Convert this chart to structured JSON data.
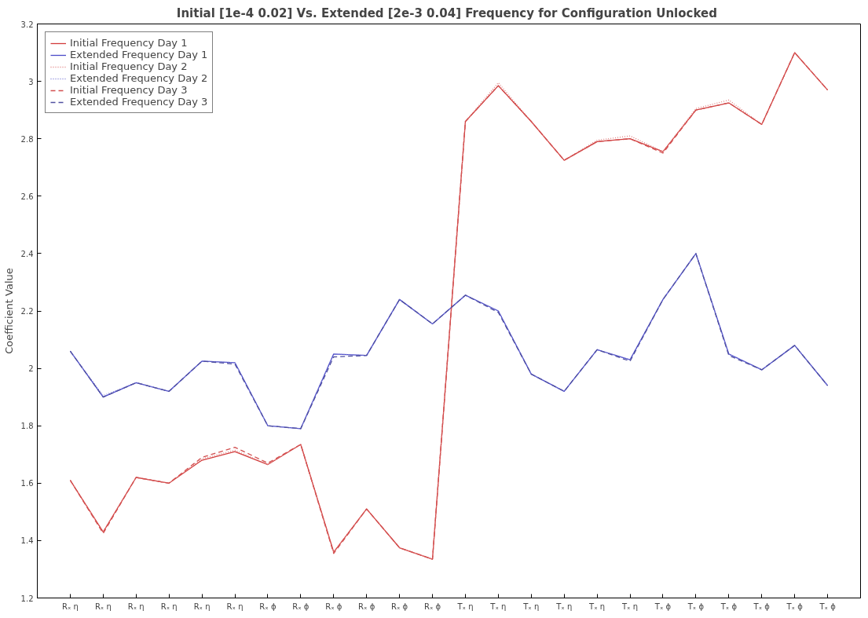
{
  "chart_data": {
    "type": "line",
    "title": "Initial [1e-4 0.02]  Vs. Extended [2e-3 0.04] Frequency for Configuration Unlocked",
    "ylabel": "Coefficient Value",
    "categories": [
      "Rₓ η",
      "Rₓ η",
      "Rₓ η",
      "Rₓ η",
      "Rₓ η",
      "Rₓ η",
      "Rₓ ϕ",
      "Rₓ ϕ",
      "Rₓ ϕ",
      "Rₓ ϕ",
      "Rₓ ϕ",
      "Rₓ ϕ",
      "Tₓ η",
      "Tₓ η",
      "Tₓ η",
      "Tₓ η",
      "Tₓ η",
      "Tₓ η",
      "Tₓ ϕ",
      "Tₓ ϕ",
      "Tₓ ϕ",
      "Tₓ ϕ",
      "Tₓ ϕ",
      "Tₓ ϕ"
    ],
    "series": [
      {
        "name": "Initial Frequency Day 1",
        "color": "#d23c3c",
        "line_style": "solid",
        "values": [
          1.61,
          1.43,
          1.62,
          1.6,
          1.68,
          1.71,
          1.665,
          1.735,
          1.36,
          1.51,
          1.375,
          1.335,
          2.86,
          2.985,
          2.86,
          2.725,
          2.79,
          2.8,
          2.755,
          2.9,
          2.925,
          2.85,
          3.1,
          2.97
        ]
      },
      {
        "name": "Extended Frequency Day 1",
        "color": "#4a4ac8",
        "line_style": "solid",
        "values": [
          2.06,
          1.9,
          1.95,
          1.92,
          2.025,
          2.02,
          1.8,
          1.79,
          2.05,
          2.045,
          2.24,
          2.155,
          2.255,
          2.2,
          1.98,
          1.92,
          2.065,
          2.03,
          2.24,
          2.4,
          2.05,
          1.995,
          2.08,
          1.94
        ]
      },
      {
        "name": "Initial Frequency Day 2",
        "color": "#e08080",
        "line_style": "dotted",
        "values": [
          1.61,
          1.43,
          1.62,
          1.6,
          1.685,
          1.715,
          1.665,
          1.735,
          1.36,
          1.51,
          1.375,
          1.335,
          2.86,
          2.995,
          2.86,
          2.725,
          2.795,
          2.81,
          2.755,
          2.905,
          2.935,
          2.85,
          3.1,
          2.97
        ]
      },
      {
        "name": "Extended Frequency Day 2",
        "color": "#8080d8",
        "line_style": "dotted",
        "values": [
          2.06,
          1.905,
          1.95,
          1.92,
          2.025,
          2.02,
          1.8,
          1.79,
          2.05,
          2.045,
          2.24,
          2.155,
          2.255,
          2.2,
          1.98,
          1.92,
          2.065,
          2.03,
          2.24,
          2.4,
          2.05,
          1.995,
          2.08,
          1.94
        ]
      },
      {
        "name": "Initial Frequency Day 3",
        "color": "#d25050",
        "line_style": "dashed",
        "values": [
          1.61,
          1.425,
          1.62,
          1.6,
          1.69,
          1.725,
          1.67,
          1.735,
          1.355,
          1.51,
          1.375,
          1.335,
          2.86,
          2.985,
          2.86,
          2.725,
          2.79,
          2.8,
          2.75,
          2.9,
          2.925,
          2.85,
          3.1,
          2.97
        ]
      },
      {
        "name": "Extended Frequency Day 3",
        "color": "#5050a0",
        "line_style": "dashed",
        "values": [
          2.06,
          1.9,
          1.95,
          1.92,
          2.025,
          2.015,
          1.8,
          1.79,
          2.04,
          2.045,
          2.24,
          2.155,
          2.255,
          2.195,
          1.98,
          1.92,
          2.065,
          2.025,
          2.24,
          2.4,
          2.045,
          1.995,
          2.08,
          1.94
        ]
      }
    ],
    "ylim": [
      1.2,
      3.2
    ],
    "yticks": [
      1.2,
      1.4,
      1.6,
      1.8,
      2,
      2.2,
      2.4,
      2.6,
      2.8,
      3,
      3.2
    ],
    "grid": false,
    "legend": "top left"
  }
}
